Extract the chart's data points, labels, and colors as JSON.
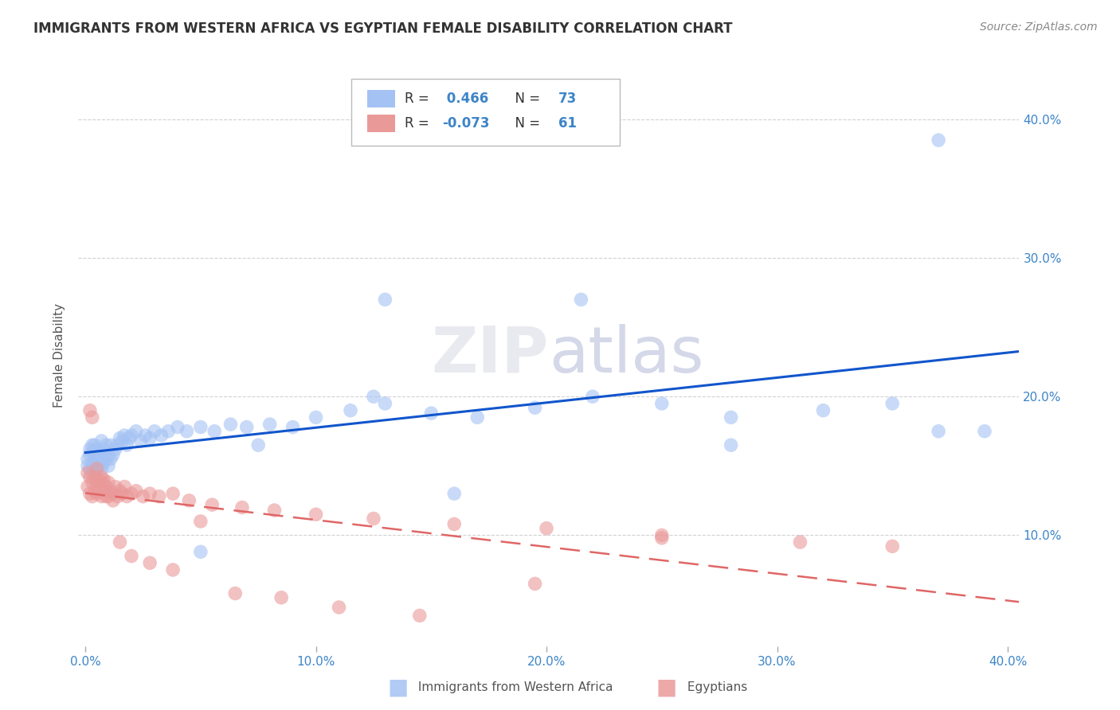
{
  "title": "IMMIGRANTS FROM WESTERN AFRICA VS EGYPTIAN FEMALE DISABILITY CORRELATION CHART",
  "source": "Source: ZipAtlas.com",
  "ylabel": "Female Disability",
  "xlim": [
    -0.003,
    0.405
  ],
  "ylim": [
    0.02,
    0.44
  ],
  "xticks": [
    0.0,
    0.1,
    0.2,
    0.3,
    0.4
  ],
  "yticks": [
    0.1,
    0.2,
    0.3,
    0.4
  ],
  "ytick_labels": [
    "10.0%",
    "20.0%",
    "30.0%",
    "40.0%"
  ],
  "xtick_labels": [
    "0.0%",
    "10.0%",
    "20.0%",
    "30.0%",
    "40.0%"
  ],
  "blue_R": 0.466,
  "blue_N": 73,
  "pink_R": -0.073,
  "pink_N": 61,
  "blue_color": "#a4c2f4",
  "pink_color": "#ea9999",
  "blue_line_color": "#1155cc",
  "pink_line_color": "#e06666",
  "background_color": "#ffffff",
  "grid_color": "#cccccc",
  "watermark_color": "#e8eaf0",
  "blue_x": [
    0.001,
    0.001,
    0.002,
    0.002,
    0.002,
    0.003,
    0.003,
    0.003,
    0.003,
    0.004,
    0.004,
    0.004,
    0.005,
    0.005,
    0.005,
    0.006,
    0.006,
    0.007,
    0.007,
    0.007,
    0.008,
    0.008,
    0.009,
    0.009,
    0.01,
    0.01,
    0.011,
    0.011,
    0.012,
    0.013,
    0.014,
    0.015,
    0.016,
    0.017,
    0.018,
    0.019,
    0.02,
    0.022,
    0.024,
    0.026,
    0.028,
    0.03,
    0.033,
    0.036,
    0.04,
    0.044,
    0.05,
    0.056,
    0.063,
    0.07,
    0.08,
    0.09,
    0.1,
    0.115,
    0.13,
    0.15,
    0.17,
    0.195,
    0.22,
    0.25,
    0.28,
    0.32,
    0.35,
    0.37,
    0.13,
    0.215,
    0.28,
    0.37,
    0.39,
    0.125,
    0.05,
    0.075,
    0.16
  ],
  "blue_y": [
    0.15,
    0.155,
    0.148,
    0.158,
    0.162,
    0.145,
    0.152,
    0.16,
    0.165,
    0.15,
    0.158,
    0.165,
    0.148,
    0.155,
    0.162,
    0.15,
    0.16,
    0.148,
    0.155,
    0.168,
    0.152,
    0.162,
    0.155,
    0.165,
    0.15,
    0.158,
    0.155,
    0.165,
    0.158,
    0.162,
    0.165,
    0.17,
    0.168,
    0.172,
    0.165,
    0.17,
    0.172,
    0.175,
    0.168,
    0.172,
    0.17,
    0.175,
    0.172,
    0.175,
    0.178,
    0.175,
    0.178,
    0.175,
    0.18,
    0.178,
    0.18,
    0.178,
    0.185,
    0.19,
    0.195,
    0.188,
    0.185,
    0.192,
    0.2,
    0.195,
    0.185,
    0.19,
    0.195,
    0.175,
    0.27,
    0.27,
    0.165,
    0.385,
    0.175,
    0.2,
    0.088,
    0.165,
    0.13
  ],
  "pink_x": [
    0.001,
    0.001,
    0.002,
    0.002,
    0.003,
    0.003,
    0.004,
    0.004,
    0.005,
    0.005,
    0.006,
    0.006,
    0.007,
    0.007,
    0.008,
    0.008,
    0.009,
    0.01,
    0.01,
    0.011,
    0.012,
    0.013,
    0.014,
    0.015,
    0.016,
    0.017,
    0.018,
    0.02,
    0.022,
    0.025,
    0.028,
    0.032,
    0.038,
    0.045,
    0.055,
    0.068,
    0.082,
    0.1,
    0.125,
    0.16,
    0.2,
    0.25,
    0.31,
    0.35,
    0.002,
    0.003,
    0.005,
    0.007,
    0.009,
    0.012,
    0.015,
    0.02,
    0.028,
    0.038,
    0.05,
    0.065,
    0.085,
    0.11,
    0.145,
    0.195,
    0.25
  ],
  "pink_y": [
    0.135,
    0.145,
    0.13,
    0.142,
    0.128,
    0.138,
    0.132,
    0.142,
    0.13,
    0.138,
    0.132,
    0.14,
    0.128,
    0.138,
    0.132,
    0.14,
    0.135,
    0.128,
    0.138,
    0.132,
    0.13,
    0.135,
    0.128,
    0.132,
    0.13,
    0.135,
    0.128,
    0.13,
    0.132,
    0.128,
    0.13,
    0.128,
    0.13,
    0.125,
    0.122,
    0.12,
    0.118,
    0.115,
    0.112,
    0.108,
    0.105,
    0.1,
    0.095,
    0.092,
    0.19,
    0.185,
    0.148,
    0.142,
    0.128,
    0.125,
    0.095,
    0.085,
    0.08,
    0.075,
    0.11,
    0.058,
    0.055,
    0.048,
    0.042,
    0.065,
    0.098
  ]
}
